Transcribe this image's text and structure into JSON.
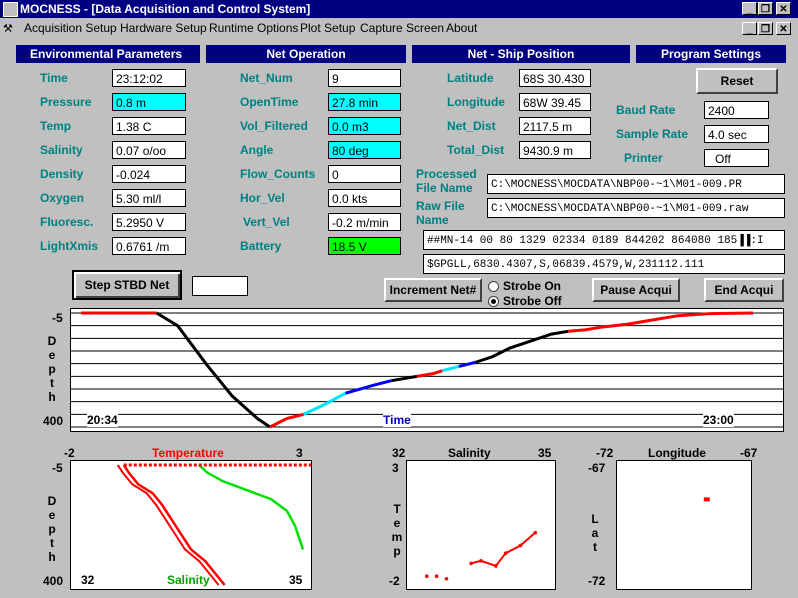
{
  "window": {
    "title": "MOCNESS - [Data Acquisition and Control System]"
  },
  "menu": [
    "Acquisition Setup",
    "Hardware Setup",
    "Runtime Options",
    "Plot Setup",
    "Capture Screen",
    "About"
  ],
  "sections": {
    "env": "Environmental Parameters",
    "net": "Net Operation",
    "pos": "Net - Ship Position",
    "prog": "Program Settings"
  },
  "env": {
    "time": {
      "label": "Time",
      "value": "23:12:02"
    },
    "pressure": {
      "label": "Pressure",
      "value": "0.8 m"
    },
    "temp": {
      "label": "Temp",
      "value": "1.38 C"
    },
    "salinity": {
      "label": "Salinity",
      "value": "0.07 o/oo"
    },
    "density": {
      "label": "Density",
      "value": "-0.024"
    },
    "oxygen": {
      "label": "Oxygen",
      "value": "5.30 ml/l"
    },
    "fluoresc": {
      "label": "Fluoresc.",
      "value": "5.2950 V"
    },
    "lightxmis": {
      "label": "LightXmis",
      "value": "0.6761 /m"
    }
  },
  "net": {
    "net_num": {
      "label": "Net_Num",
      "value": "9"
    },
    "opentime": {
      "label": "OpenTime",
      "value": "27.8 min"
    },
    "vol_filtered": {
      "label": "Vol_Filtered",
      "value": "0.0 m3"
    },
    "angle": {
      "label": "Angle",
      "value": "80 deg"
    },
    "flow_counts": {
      "label": "Flow_Counts",
      "value": "0"
    },
    "hor_vel": {
      "label": "Hor_Vel",
      "value": "0.0 kts"
    },
    "vert_vel": {
      "label": "Vert_Vel",
      "value": "-0.2 m/min"
    },
    "battery": {
      "label": "Battery",
      "value": "18.5 V"
    }
  },
  "pos": {
    "latitude": {
      "label": "Latitude",
      "value": "68S 30.430"
    },
    "longitude": {
      "label": "Longitude",
      "value": "68W 39.45"
    },
    "net_dist": {
      "label": "Net_Dist",
      "value": "2117.5 m"
    },
    "total_dist": {
      "label": "Total_Dist",
      "value": "9430.9 m"
    }
  },
  "prog": {
    "reset": "Reset",
    "baud": {
      "label": "Baud Rate",
      "value": "2400"
    },
    "sample": {
      "label": "Sample Rate",
      "value": "4.0 sec"
    },
    "printer": {
      "label": "Printer",
      "value": "Off"
    }
  },
  "files": {
    "processed_label_1": "Processed",
    "processed_label_2": "File Name",
    "processed": "C:\\MOCNESS\\MOCDATA\\NBP00-~1\\M01-009.PR",
    "raw_label_1": "Raw File",
    "raw_label_2": "Name",
    "raw": "C:\\MOCNESS\\MOCDATA\\NBP00-~1\\M01-009.raw"
  },
  "stream": {
    "line1": "##MN-14 00 80 1329 02334 0189 844202 864080 185▐▐:I",
    "line2": "$GPGLL,6830.4307,S,06839.4579,W,231112.111"
  },
  "buttons": {
    "step": "Step STBD Net",
    "increment": "Increment Net#",
    "pause": "Pause Acqui",
    "end": "End Acqui"
  },
  "strobe": {
    "on": "Strobe On",
    "off": "Strobe Off",
    "selected": "off"
  },
  "colors": {
    "titlebar": "#000080",
    "label": "#008080",
    "cyan": "#00ffff",
    "green": "#00ff00",
    "red": "#ff0000",
    "blue": "#0000ff"
  },
  "chart_data": [
    {
      "type": "line",
      "ylabel": "Depth",
      "xlabel": "Time",
      "ylim": [
        -5,
        400
      ],
      "y_ticks": [
        "-5",
        "400"
      ],
      "x_start": "20:34",
      "x_end": "23:00",
      "segments": [
        {
          "color": "#ff0000",
          "points": [
            [
              0,
              -5
            ],
            [
              0.18,
              -5
            ]
          ]
        },
        {
          "color": "#000000",
          "points": [
            [
              0.18,
              -5
            ],
            [
              0.23,
              40
            ],
            [
              0.3,
              180
            ],
            [
              0.36,
              290
            ],
            [
              0.42,
              370
            ],
            [
              0.45,
              400
            ]
          ]
        },
        {
          "color": "#ff0000",
          "points": [
            [
              0.45,
              400
            ],
            [
              0.49,
              370
            ],
            [
              0.53,
              355
            ]
          ]
        },
        {
          "color": "#00e5ff",
          "points": [
            [
              0.53,
              355
            ],
            [
              0.58,
              320
            ],
            [
              0.63,
              280
            ]
          ]
        },
        {
          "color": "#0000ff",
          "points": [
            [
              0.63,
              280
            ],
            [
              0.7,
              250
            ],
            [
              0.74,
              235
            ]
          ]
        },
        {
          "color": "#000000",
          "points": [
            [
              0.74,
              235
            ],
            [
              0.8,
              220
            ]
          ]
        },
        {
          "color": "#ff0000",
          "points": [
            [
              0.8,
              220
            ],
            [
              0.84,
              210
            ],
            [
              0.86,
              200
            ]
          ]
        },
        {
          "color": "#00e5ff",
          "points": [
            [
              0.86,
              200
            ],
            [
              0.9,
              185
            ]
          ]
        },
        {
          "color": "#0000ff",
          "points": [
            [
              0.9,
              185
            ],
            [
              0.94,
              170
            ]
          ]
        },
        {
          "color": "#000000",
          "points": [
            [
              0.94,
              170
            ],
            [
              0.98,
              150
            ],
            [
              1.02,
              120
            ],
            [
              1.06,
              100
            ],
            [
              1.12,
              70
            ],
            [
              1.16,
              60
            ]
          ]
        },
        {
          "color": "#ff0000",
          "points": [
            [
              1.16,
              60
            ],
            [
              1.2,
              55
            ],
            [
              1.24,
              45
            ],
            [
              1.3,
              35
            ],
            [
              1.36,
              20
            ],
            [
              1.42,
              5
            ],
            [
              1.5,
              -3
            ],
            [
              1.6,
              -5
            ]
          ]
        }
      ]
    },
    {
      "type": "scatter",
      "title": "Temperature",
      "xlabel": "Salinity",
      "ylabel": "Depth",
      "xlim_temp": [
        -2,
        3
      ],
      "xlim_sal": [
        32,
        35
      ],
      "ylim": [
        -5,
        400
      ],
      "temperature_points": [
        [
          -0.9,
          -5
        ],
        [
          -0.8,
          20
        ],
        [
          -0.6,
          60
        ],
        [
          -0.3,
          90
        ],
        [
          -0.1,
          130
        ],
        [
          0.1,
          180
        ],
        [
          0.3,
          230
        ],
        [
          0.5,
          280
        ],
        [
          0.8,
          320
        ],
        [
          1.0,
          360
        ],
        [
          1.2,
          400
        ]
      ],
      "salinity_points": [
        [
          33.6,
          -5
        ],
        [
          33.7,
          20
        ],
        [
          33.9,
          50
        ],
        [
          34.2,
          80
        ],
        [
          34.5,
          110
        ],
        [
          34.7,
          150
        ],
        [
          34.8,
          200
        ],
        [
          34.85,
          240
        ],
        [
          34.9,
          280
        ]
      ]
    },
    {
      "type": "scatter",
      "title": "Salinity",
      "ylabel": "Temp",
      "xlim": [
        32,
        35
      ],
      "ylim": [
        -2,
        3
      ],
      "points": [
        [
          32.4,
          -1.5
        ],
        [
          32.6,
          -1.5
        ],
        [
          32.8,
          -1.6
        ],
        [
          33.3,
          -1.0
        ],
        [
          33.5,
          -0.9
        ],
        [
          33.8,
          -1.1
        ],
        [
          34.0,
          -0.6
        ],
        [
          34.3,
          -0.3
        ],
        [
          34.6,
          0.2
        ]
      ]
    },
    {
      "type": "scatter",
      "title": "Longitude",
      "ylabel": "Lat",
      "xlim": [
        -72,
        -67
      ],
      "ylim": [
        -72,
        -67
      ],
      "points": [
        [
          -68.65,
          -68.5
        ]
      ]
    }
  ]
}
